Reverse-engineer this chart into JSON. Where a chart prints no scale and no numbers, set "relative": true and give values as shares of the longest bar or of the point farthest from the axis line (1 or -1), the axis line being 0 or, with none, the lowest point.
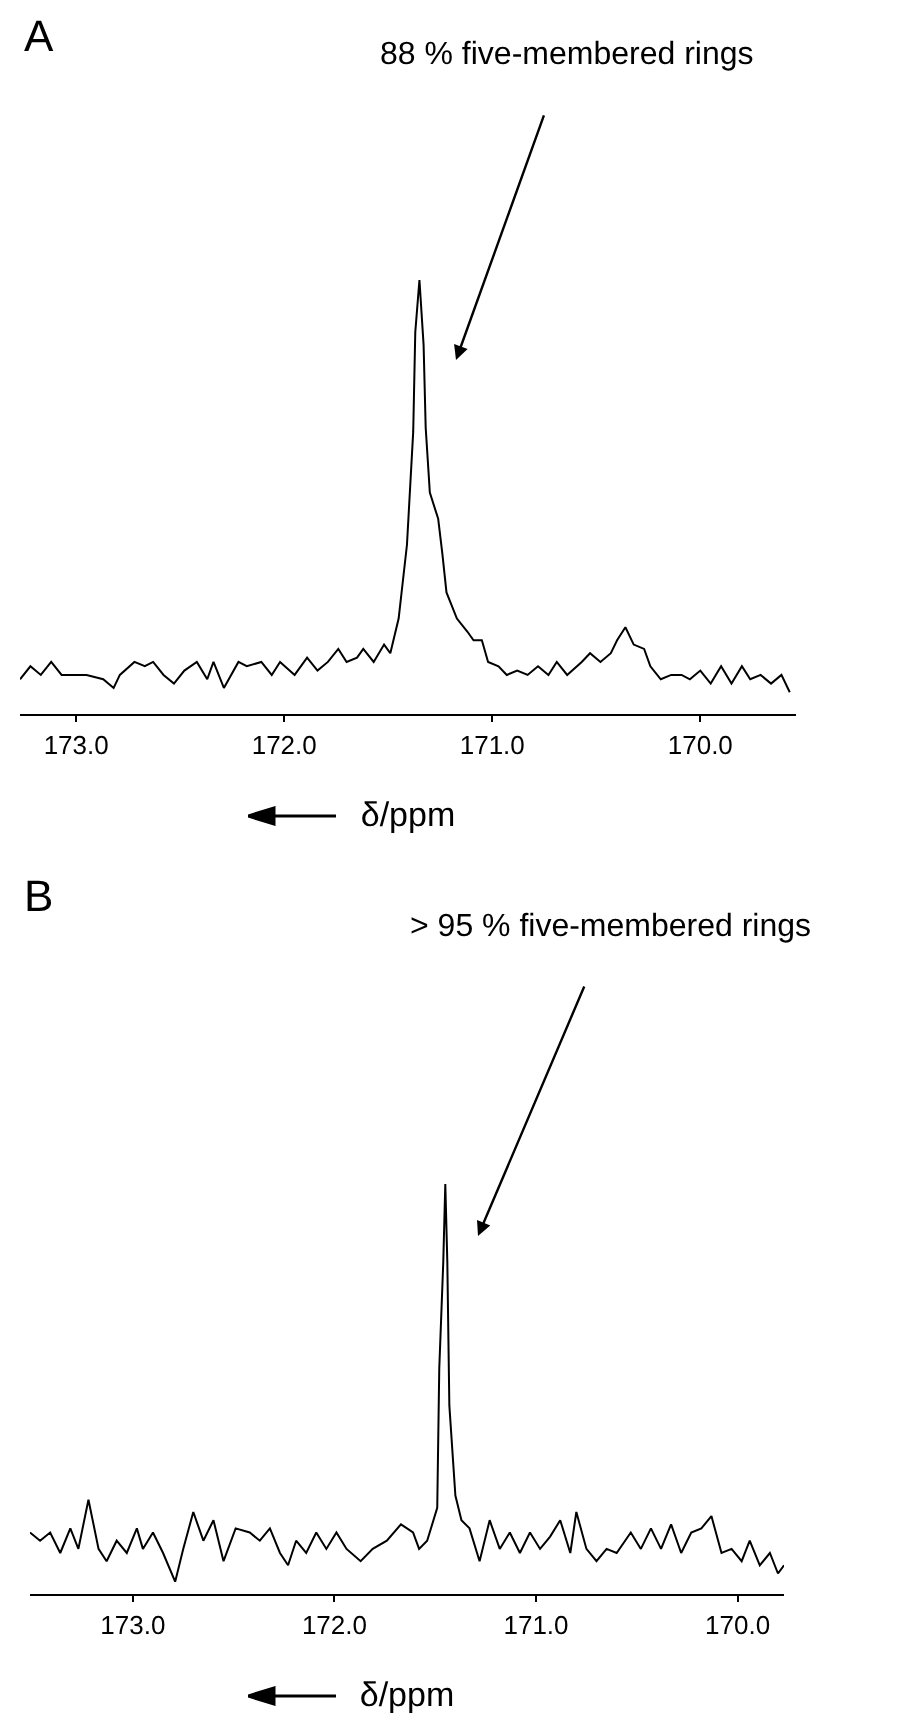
{
  "chart_data": [
    {
      "type": "line",
      "title": "A",
      "xlabel": "δ/ppm",
      "relative": true,
      "tick_labels": "x",
      "grid": false,
      "color": "#000000",
      "annotations": [
        "88 % five-membered rings"
      ],
      "xlim": [
        173.27,
        169.54
      ],
      "xticks": [
        {
          "value": 173,
          "label": "173.0"
        },
        {
          "value": 172,
          "label": "172.0"
        },
        {
          "value": 171,
          "label": "171.0"
        },
        {
          "value": 170,
          "label": "170.0"
        }
      ],
      "x": [
        173.27,
        173.22,
        173.17,
        173.12,
        173.07,
        173.01,
        172.95,
        172.87,
        172.82,
        172.79,
        172.72,
        172.67,
        172.63,
        172.58,
        172.53,
        172.48,
        172.42,
        172.37,
        172.34,
        172.29,
        172.22,
        172.18,
        172.11,
        172.06,
        172.02,
        171.95,
        171.89,
        171.84,
        171.79,
        171.74,
        171.7,
        171.65,
        171.62,
        171.57,
        171.52,
        171.49,
        171.45,
        171.41,
        171.38,
        171.37,
        171.35,
        171.33,
        171.32,
        171.3,
        171.26,
        171.24,
        171.22,
        171.17,
        171.12,
        171.09,
        171.05,
        171.02,
        170.97,
        170.93,
        170.88,
        170.83,
        170.78,
        170.73,
        170.69,
        170.64,
        170.57,
        170.53,
        170.48,
        170.43,
        170.4,
        170.36,
        170.32,
        170.27,
        170.24,
        170.19,
        170.14,
        170.09,
        170.05,
        170,
        169.95,
        169.9,
        169.85,
        169.8,
        169.76,
        169.71,
        169.66,
        169.61,
        169.57
      ],
      "values": [
        0.08,
        0.11,
        0.09,
        0.12,
        0.09,
        0.09,
        0.09,
        0.08,
        0.06,
        0.09,
        0.12,
        0.11,
        0.12,
        0.09,
        0.07,
        0.1,
        0.12,
        0.08,
        0.12,
        0.06,
        0.12,
        0.11,
        0.12,
        0.09,
        0.12,
        0.09,
        0.13,
        0.1,
        0.12,
        0.15,
        0.12,
        0.13,
        0.15,
        0.12,
        0.16,
        0.14,
        0.22,
        0.39,
        0.65,
        0.88,
        1,
        0.85,
        0.66,
        0.51,
        0.45,
        0.37,
        0.28,
        0.22,
        0.19,
        0.17,
        0.17,
        0.12,
        0.11,
        0.09,
        0.1,
        0.09,
        0.11,
        0.09,
        0.12,
        0.09,
        0.12,
        0.14,
        0.12,
        0.14,
        0.17,
        0.2,
        0.16,
        0.15,
        0.11,
        0.08,
        0.09,
        0.09,
        0.08,
        0.1,
        0.07,
        0.11,
        0.07,
        0.11,
        0.08,
        0.09,
        0.07,
        0.09,
        0.05
      ]
    },
    {
      "type": "line",
      "title": "B",
      "xlabel": "δ/ppm",
      "relative": true,
      "tick_labels": "x",
      "grid": false,
      "color": "#000000",
      "annotations": [
        "> 95 % five-membered rings"
      ],
      "xlim": [
        173.51,
        169.77
      ],
      "xticks": [
        {
          "value": 173,
          "label": "173.0"
        },
        {
          "value": 172,
          "label": "172.0"
        },
        {
          "value": 171,
          "label": "171.0"
        },
        {
          "value": 170,
          "label": "170.0"
        }
      ],
      "x": [
        173.51,
        173.46,
        173.41,
        173.36,
        173.31,
        173.27,
        173.22,
        173.17,
        173.13,
        173.08,
        173.03,
        172.98,
        172.95,
        172.9,
        172.85,
        172.79,
        172.75,
        172.7,
        172.65,
        172.6,
        172.55,
        172.49,
        172.42,
        172.37,
        172.32,
        172.27,
        172.23,
        172.19,
        172.14,
        172.09,
        172.04,
        171.99,
        171.94,
        171.87,
        171.81,
        171.74,
        171.67,
        171.61,
        171.58,
        171.54,
        171.49,
        171.48,
        171.46,
        171.45,
        171.44,
        171.43,
        171.4,
        171.37,
        171.33,
        171.28,
        171.23,
        171.18,
        171.13,
        171.08,
        171.03,
        170.98,
        170.93,
        170.88,
        170.83,
        170.8,
        170.75,
        170.7,
        170.65,
        170.6,
        170.53,
        170.48,
        170.43,
        170.38,
        170.33,
        170.28,
        170.23,
        170.18,
        170.13,
        170.08,
        170.03,
        169.98,
        169.94,
        169.89,
        169.84,
        169.8,
        169.77
      ],
      "values": [
        0.15,
        0.13,
        0.15,
        0.1,
        0.16,
        0.11,
        0.23,
        0.11,
        0.08,
        0.13,
        0.1,
        0.16,
        0.11,
        0.15,
        0.1,
        0.03,
        0.11,
        0.2,
        0.13,
        0.18,
        0.08,
        0.16,
        0.15,
        0.13,
        0.16,
        0.1,
        0.07,
        0.13,
        0.1,
        0.15,
        0.11,
        0.15,
        0.11,
        0.08,
        0.11,
        0.13,
        0.17,
        0.15,
        0.11,
        0.13,
        0.21,
        0.55,
        0.81,
        1,
        0.81,
        0.46,
        0.24,
        0.18,
        0.16,
        0.08,
        0.18,
        0.11,
        0.15,
        0.1,
        0.15,
        0.11,
        0.14,
        0.18,
        0.1,
        0.2,
        0.11,
        0.08,
        0.11,
        0.1,
        0.15,
        0.11,
        0.16,
        0.11,
        0.17,
        0.1,
        0.15,
        0.16,
        0.19,
        0.1,
        0.11,
        0.08,
        0.13,
        0.07,
        0.1,
        0.05,
        0.07
      ]
    }
  ]
}
